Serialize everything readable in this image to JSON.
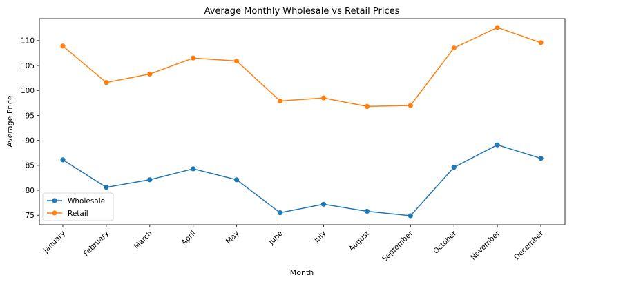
{
  "chart_data": {
    "type": "line",
    "title": "Average Monthly Wholesale vs Retail Prices",
    "xlabel": "Month",
    "ylabel": "Average Price",
    "categories": [
      "January",
      "February",
      "March",
      "April",
      "May",
      "June",
      "July",
      "August",
      "September",
      "October",
      "November",
      "December"
    ],
    "series": [
      {
        "name": "Wholesale",
        "color": "#1f77b4",
        "values": [
          86.1,
          80.6,
          82.1,
          84.3,
          82.1,
          75.5,
          77.2,
          75.8,
          74.9,
          84.6,
          89.1,
          86.4
        ]
      },
      {
        "name": "Retail",
        "color": "#ff7f0e",
        "values": [
          108.9,
          101.6,
          103.3,
          106.5,
          105.9,
          97.9,
          98.5,
          96.8,
          97.0,
          108.5,
          112.6,
          109.6
        ]
      }
    ],
    "ylim": [
      73.1,
      114.4
    ],
    "yticks": [
      75,
      80,
      85,
      90,
      95,
      100,
      105,
      110
    ],
    "grid": false,
    "legend_position": "lower-left"
  }
}
